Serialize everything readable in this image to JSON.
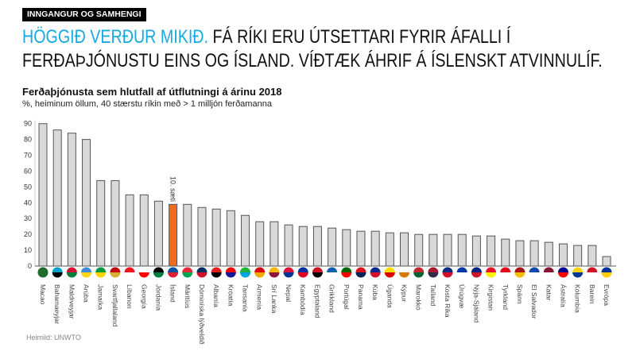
{
  "tag": "INNGANGUR OG SAMHENGI",
  "headline": {
    "accent": "HÖGGIÐ VERÐUR MIKIÐ.",
    "line1_rest": " FÁ RÍKI ERU ÚTSETTARI FYRIR ÁFALLI Í",
    "line2": "FERÐAÞJÓNUSTU EINS OG ÍSLAND.  VÍÐTÆK ÁHRIF Á ÍSLENSKT ATVINNULÍF."
  },
  "source": "Heimild: UNWTO",
  "colors": {
    "bar": "#d9d9d9",
    "bar_stroke": "#555555",
    "highlight": "#f26b1d",
    "accent": "#17a9e1"
  },
  "chart_data": {
    "type": "bar",
    "title": "Ferðaþjónusta sem hlutfall af útflutningi á árinu 2018",
    "subtitle": "%, heiminum öllum, 40 stærstu ríkin með > 1 milljón ferðamanna",
    "ylim": [
      0,
      90
    ],
    "yticks": [
      0,
      10,
      20,
      30,
      40,
      50,
      60,
      70,
      80,
      90
    ],
    "grid": false,
    "highlight_index": 9,
    "annotation": "10. sæti",
    "categories": [
      "Macao",
      "Bahamaeyjar",
      "Maldíveyjar",
      "Arúba",
      "Jamaíka",
      "Svartfjallaland",
      "Líbanon",
      "Georgía",
      "Jórdanía",
      "Ísland",
      "Máritíus",
      "Dóminíska lýðveldið",
      "Albanía",
      "Króatía",
      "Tansanía",
      "Armenía",
      "Srí Lanka",
      "Nepal",
      "Kambódía",
      "Egyptaland",
      "Grikkland",
      "Portúgal",
      "Panama",
      "Kúba",
      "Úganda",
      "Kýpur",
      "Marokkó",
      "Taíland",
      "Kosta Ríka",
      "Úrúgvæ",
      "Nýja-Sjáland",
      "Kirgistan",
      "Tyrkland",
      "Spánn",
      "El Salvador",
      "Katar",
      "Ástralía",
      "Kólumbía",
      "Barein",
      "Evrópa"
    ],
    "values": [
      90,
      86,
      84,
      80,
      54,
      54,
      45,
      45,
      41,
      39,
      39,
      37,
      36,
      35,
      32,
      28,
      28,
      26,
      25,
      25,
      24,
      23,
      22,
      22,
      21,
      21,
      20,
      20,
      20,
      20,
      19,
      19,
      17,
      16,
      16,
      15,
      14,
      13,
      13,
      6
    ],
    "flag_colors": [
      [
        "#1e6b2e",
        "#1e6b2e"
      ],
      [
        "#00a3c7",
        "#000000"
      ],
      [
        "#d21034",
        "#007e3a"
      ],
      [
        "#4189dd",
        "#f9d616"
      ],
      [
        "#009b3a",
        "#fed100"
      ],
      [
        "#c40308",
        "#d4af37"
      ],
      [
        "#ee161f",
        "#ffffff"
      ],
      [
        "#ffffff",
        "#ff0000"
      ],
      [
        "#000000",
        "#007a3d"
      ],
      [
        "#02529c",
        "#dc1e35"
      ],
      [
        "#ea2839",
        "#00a551"
      ],
      [
        "#002d62",
        "#ce1126"
      ],
      [
        "#e41e20",
        "#000000"
      ],
      [
        "#ff0000",
        "#171796"
      ],
      [
        "#1eb53a",
        "#00a3dd"
      ],
      [
        "#d90012",
        "#f2a800"
      ],
      [
        "#ffb700",
        "#8d153a"
      ],
      [
        "#dc143c",
        "#003893"
      ],
      [
        "#032ea1",
        "#e00025"
      ],
      [
        "#ce1126",
        "#000000"
      ],
      [
        "#0d5eaf",
        "#ffffff"
      ],
      [
        "#006600",
        "#ff0000"
      ],
      [
        "#da121a",
        "#072357"
      ],
      [
        "#002a8f",
        "#cf142b"
      ],
      [
        "#fcdc04",
        "#d90000"
      ],
      [
        "#ffffff",
        "#d57800"
      ],
      [
        "#c1272d",
        "#006233"
      ],
      [
        "#a51931",
        "#2d2a4a"
      ],
      [
        "#002b7f",
        "#ce1126"
      ],
      [
        "#0038a8",
        "#ffffff"
      ],
      [
        "#00247d",
        "#cc142b"
      ],
      [
        "#e8112d",
        "#ffef00"
      ],
      [
        "#e30a17",
        "#ffffff"
      ],
      [
        "#aa151b",
        "#f1bf00"
      ],
      [
        "#0f47af",
        "#ffffff"
      ],
      [
        "#8a1538",
        "#ffffff"
      ],
      [
        "#00008b",
        "#ff0000"
      ],
      [
        "#fcd116",
        "#003893"
      ],
      [
        "#ce1126",
        "#ffffff"
      ],
      [
        "#003399",
        "#ffcc00"
      ]
    ]
  }
}
